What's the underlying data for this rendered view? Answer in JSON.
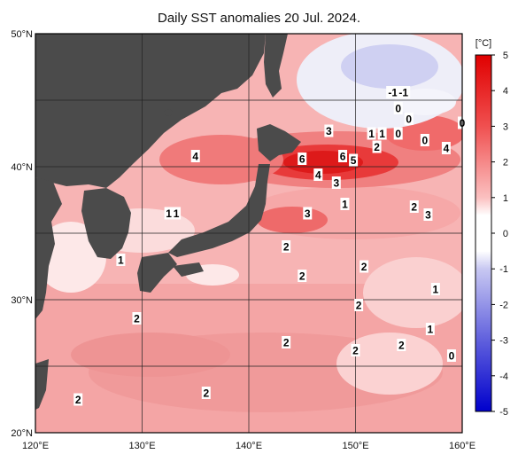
{
  "title": "Daily SST anomalies 20 Jul. 2024.",
  "map": {
    "lon_range": [
      120,
      160
    ],
    "lat_range": [
      20,
      50
    ],
    "lon_ticks": [
      {
        "v": 120,
        "label": "120°E"
      },
      {
        "v": 130,
        "label": "130°E"
      },
      {
        "v": 140,
        "label": "140°E"
      },
      {
        "v": 150,
        "label": "150°E"
      },
      {
        "v": 160,
        "label": "160°E"
      }
    ],
    "lat_ticks": [
      {
        "v": 50,
        "label": "50°N"
      },
      {
        "v": 40,
        "label": "40°N"
      },
      {
        "v": 30,
        "label": "30°N"
      },
      {
        "v": 20,
        "label": "20°N"
      }
    ],
    "grid_lons": [
      120,
      130,
      140,
      150,
      160
    ],
    "grid_lats": [
      20,
      25,
      30,
      35,
      40,
      45,
      50
    ],
    "land_color": "#4b4b4b",
    "contour_labels": [
      {
        "text": "-1",
        "lon": 153.5,
        "lat": 45.6
      },
      {
        "text": "-1",
        "lon": 154.5,
        "lat": 45.6
      },
      {
        "text": "0",
        "lon": 154.0,
        "lat": 44.4
      },
      {
        "text": "0",
        "lon": 155.0,
        "lat": 43.6
      },
      {
        "text": "0",
        "lon": 154.0,
        "lat": 42.5
      },
      {
        "text": "0",
        "lon": 156.5,
        "lat": 42.0
      },
      {
        "text": "0",
        "lon": 160.0,
        "lat": 43.3
      },
      {
        "text": "1",
        "lon": 152.5,
        "lat": 42.5
      },
      {
        "text": "1",
        "lon": 151.5,
        "lat": 42.5
      },
      {
        "text": "3",
        "lon": 147.5,
        "lat": 42.7
      },
      {
        "text": "2",
        "lon": 152.0,
        "lat": 41.5
      },
      {
        "text": "4",
        "lon": 158.5,
        "lat": 41.4
      },
      {
        "text": "4",
        "lon": 135.0,
        "lat": 40.8
      },
      {
        "text": "6",
        "lon": 145.0,
        "lat": 40.6
      },
      {
        "text": "6",
        "lon": 148.8,
        "lat": 40.8
      },
      {
        "text": "5",
        "lon": 149.8,
        "lat": 40.5
      },
      {
        "text": "4",
        "lon": 146.5,
        "lat": 39.4
      },
      {
        "text": "3",
        "lon": 148.2,
        "lat": 38.8
      },
      {
        "text": "1",
        "lon": 149.0,
        "lat": 37.2
      },
      {
        "text": "2",
        "lon": 155.5,
        "lat": 37.0
      },
      {
        "text": "3",
        "lon": 156.8,
        "lat": 36.4
      },
      {
        "text": "3",
        "lon": 145.5,
        "lat": 36.5
      },
      {
        "text": "1",
        "lon": 132.5,
        "lat": 36.5
      },
      {
        "text": "1",
        "lon": 133.2,
        "lat": 36.5
      },
      {
        "text": "2",
        "lon": 143.5,
        "lat": 34.0
      },
      {
        "text": "1",
        "lon": 128.0,
        "lat": 33.0
      },
      {
        "text": "2",
        "lon": 150.8,
        "lat": 32.5
      },
      {
        "text": "2",
        "lon": 145.0,
        "lat": 31.8
      },
      {
        "text": "1",
        "lon": 157.5,
        "lat": 30.8
      },
      {
        "text": "2",
        "lon": 150.3,
        "lat": 29.6
      },
      {
        "text": "2",
        "lon": 129.5,
        "lat": 28.6
      },
      {
        "text": "1",
        "lon": 157.0,
        "lat": 27.8
      },
      {
        "text": "2",
        "lon": 143.5,
        "lat": 26.8
      },
      {
        "text": "2",
        "lon": 154.3,
        "lat": 26.6
      },
      {
        "text": "2",
        "lon": 150.0,
        "lat": 26.2
      },
      {
        "text": "0",
        "lon": 159.0,
        "lat": 25.8
      },
      {
        "text": "2",
        "lon": 136.0,
        "lat": 23.0
      },
      {
        "text": "2",
        "lon": 124.0,
        "lat": 22.5
      }
    ]
  },
  "colorbar": {
    "unit": "[°C]",
    "ticks": [
      5,
      4,
      3,
      2,
      1,
      0,
      -1,
      -2,
      -3,
      -4,
      -5
    ],
    "tick_labels": [
      "5",
      "4",
      "3",
      "2",
      "1",
      "0",
      "-1",
      "-2",
      "-3",
      "-4",
      "-5"
    ],
    "stops": [
      "#e00000",
      "#ee3030",
      "#f56a6a",
      "#f9a0a0",
      "#fcd0d0",
      "#ffffff",
      "#d8d8f5",
      "#a9a9ee",
      "#7070e0",
      "#3a3ad5",
      "#0000cc"
    ]
  }
}
